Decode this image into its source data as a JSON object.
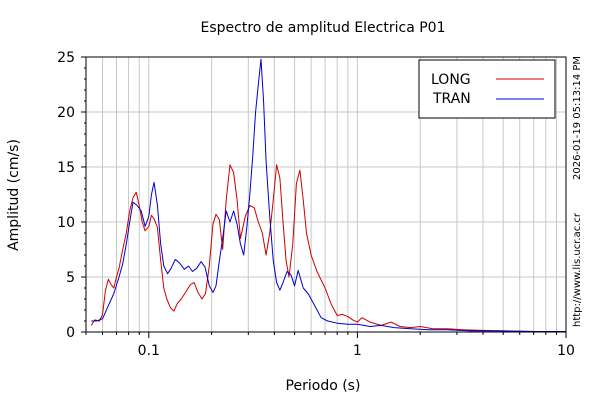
{
  "chart_data": {
    "type": "line",
    "title": "Espectro de amplitud Electrica P01",
    "xlabel": "Periodo (s)",
    "ylabel": "Amplitud (cm/s)",
    "x_scale": "log",
    "xlim": [
      0.05,
      10
    ],
    "ylim": [
      0,
      25
    ],
    "x_tick_labels": [
      {
        "value": 0.1,
        "label": "0.1"
      },
      {
        "value": 1,
        "label": "1"
      },
      {
        "value": 10,
        "label": "10"
      }
    ],
    "y_ticks": [
      0,
      5,
      10,
      15,
      20,
      25
    ],
    "grid": true,
    "legend_position": "top-right",
    "timestamp_text": "2026-01-19 05:13:14 PM",
    "source_text": "http://www.lis.ucr.ac.cr",
    "series": [
      {
        "name": "LONG",
        "color": "#cc0000",
        "points": [
          [
            0.053,
            0.6
          ],
          [
            0.055,
            1.1
          ],
          [
            0.058,
            1.0
          ],
          [
            0.06,
            1.6
          ],
          [
            0.062,
            3.8
          ],
          [
            0.064,
            4.8
          ],
          [
            0.066,
            4.3
          ],
          [
            0.068,
            4.0
          ],
          [
            0.07,
            5.0
          ],
          [
            0.072,
            5.8
          ],
          [
            0.075,
            7.5
          ],
          [
            0.078,
            9.0
          ],
          [
            0.081,
            11.0
          ],
          [
            0.084,
            12.2
          ],
          [
            0.087,
            12.7
          ],
          [
            0.09,
            11.5
          ],
          [
            0.093,
            10.0
          ],
          [
            0.096,
            9.2
          ],
          [
            0.1,
            9.6
          ],
          [
            0.103,
            10.6
          ],
          [
            0.106,
            10.3
          ],
          [
            0.11,
            9.5
          ],
          [
            0.114,
            6.5
          ],
          [
            0.118,
            4.0
          ],
          [
            0.122,
            3.0
          ],
          [
            0.127,
            2.2
          ],
          [
            0.132,
            1.9
          ],
          [
            0.137,
            2.6
          ],
          [
            0.143,
            3.0
          ],
          [
            0.15,
            3.6
          ],
          [
            0.158,
            4.3
          ],
          [
            0.165,
            4.5
          ],
          [
            0.172,
            3.6
          ],
          [
            0.18,
            3.0
          ],
          [
            0.187,
            3.5
          ],
          [
            0.195,
            6.0
          ],
          [
            0.203,
            9.8
          ],
          [
            0.21,
            10.7
          ],
          [
            0.218,
            10.2
          ],
          [
            0.226,
            7.5
          ],
          [
            0.235,
            12.0
          ],
          [
            0.245,
            15.2
          ],
          [
            0.255,
            14.5
          ],
          [
            0.265,
            12.0
          ],
          [
            0.275,
            8.5
          ],
          [
            0.29,
            10.5
          ],
          [
            0.305,
            11.5
          ],
          [
            0.32,
            11.3
          ],
          [
            0.335,
            10.0
          ],
          [
            0.35,
            9.0
          ],
          [
            0.365,
            7.0
          ],
          [
            0.38,
            9.0
          ],
          [
            0.395,
            12.0
          ],
          [
            0.41,
            15.2
          ],
          [
            0.425,
            14.0
          ],
          [
            0.44,
            10.0
          ],
          [
            0.455,
            6.5
          ],
          [
            0.47,
            5.0
          ],
          [
            0.49,
            8.0
          ],
          [
            0.51,
            13.5
          ],
          [
            0.53,
            14.7
          ],
          [
            0.55,
            12.0
          ],
          [
            0.57,
            9.0
          ],
          [
            0.6,
            7.0
          ],
          [
            0.64,
            5.5
          ],
          [
            0.7,
            4.0
          ],
          [
            0.75,
            2.5
          ],
          [
            0.8,
            1.5
          ],
          [
            0.85,
            1.6
          ],
          [
            0.9,
            1.4
          ],
          [
            0.95,
            1.1
          ],
          [
            1.0,
            0.9
          ],
          [
            1.05,
            1.3
          ],
          [
            1.15,
            0.9
          ],
          [
            1.3,
            0.6
          ],
          [
            1.45,
            0.9
          ],
          [
            1.6,
            0.5
          ],
          [
            1.8,
            0.4
          ],
          [
            2.0,
            0.5
          ],
          [
            2.3,
            0.3
          ],
          [
            2.7,
            0.3
          ],
          [
            3.2,
            0.2
          ],
          [
            4.0,
            0.15
          ],
          [
            5.0,
            0.1
          ],
          [
            7.0,
            0.05
          ],
          [
            10.0,
            0.05
          ]
        ]
      },
      {
        "name": "TRAN",
        "color": "#0000cc",
        "points": [
          [
            0.053,
            1.0
          ],
          [
            0.056,
            1.0
          ],
          [
            0.06,
            1.2
          ],
          [
            0.064,
            2.4
          ],
          [
            0.068,
            3.5
          ],
          [
            0.072,
            5.0
          ],
          [
            0.075,
            6.2
          ],
          [
            0.078,
            8.0
          ],
          [
            0.081,
            10.0
          ],
          [
            0.084,
            11.8
          ],
          [
            0.088,
            11.5
          ],
          [
            0.092,
            11.0
          ],
          [
            0.096,
            9.6
          ],
          [
            0.1,
            10.5
          ],
          [
            0.103,
            12.5
          ],
          [
            0.106,
            13.6
          ],
          [
            0.11,
            11.5
          ],
          [
            0.114,
            8.0
          ],
          [
            0.118,
            6.0
          ],
          [
            0.123,
            5.3
          ],
          [
            0.128,
            5.8
          ],
          [
            0.134,
            6.6
          ],
          [
            0.14,
            6.3
          ],
          [
            0.148,
            5.7
          ],
          [
            0.155,
            6.0
          ],
          [
            0.162,
            5.5
          ],
          [
            0.17,
            5.8
          ],
          [
            0.178,
            6.4
          ],
          [
            0.186,
            5.9
          ],
          [
            0.195,
            4.2
          ],
          [
            0.203,
            3.6
          ],
          [
            0.21,
            4.2
          ],
          [
            0.218,
            6.5
          ],
          [
            0.226,
            8.5
          ],
          [
            0.235,
            11.0
          ],
          [
            0.245,
            10.0
          ],
          [
            0.255,
            11.0
          ],
          [
            0.265,
            9.8
          ],
          [
            0.275,
            8.0
          ],
          [
            0.285,
            7.0
          ],
          [
            0.295,
            9.5
          ],
          [
            0.305,
            12.5
          ],
          [
            0.315,
            16.0
          ],
          [
            0.325,
            20.0
          ],
          [
            0.335,
            22.5
          ],
          [
            0.345,
            24.8
          ],
          [
            0.355,
            21.0
          ],
          [
            0.365,
            15.5
          ],
          [
            0.38,
            10.5
          ],
          [
            0.395,
            6.5
          ],
          [
            0.41,
            4.5
          ],
          [
            0.425,
            3.8
          ],
          [
            0.44,
            4.5
          ],
          [
            0.46,
            5.5
          ],
          [
            0.48,
            5.2
          ],
          [
            0.5,
            4.2
          ],
          [
            0.52,
            5.6
          ],
          [
            0.55,
            4.0
          ],
          [
            0.58,
            3.5
          ],
          [
            0.62,
            2.5
          ],
          [
            0.67,
            1.3
          ],
          [
            0.72,
            1.0
          ],
          [
            0.8,
            0.8
          ],
          [
            0.9,
            0.7
          ],
          [
            1.0,
            0.7
          ],
          [
            1.15,
            0.5
          ],
          [
            1.3,
            0.6
          ],
          [
            1.5,
            0.4
          ],
          [
            1.8,
            0.3
          ],
          [
            2.2,
            0.2
          ],
          [
            2.7,
            0.2
          ],
          [
            3.5,
            0.1
          ],
          [
            5.0,
            0.1
          ],
          [
            7.0,
            0.05
          ],
          [
            10.0,
            0.05
          ]
        ]
      }
    ]
  }
}
